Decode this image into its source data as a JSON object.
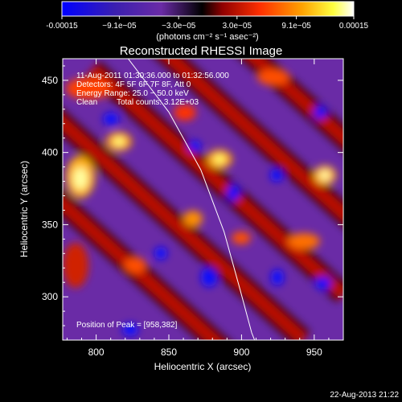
{
  "colors": {
    "background": "#000000",
    "text": "#ffffff",
    "colormap": [
      "#0000ff",
      "#4b2a8c",
      "#6a2ba6",
      "#000000",
      "#a40000",
      "#ff3a00",
      "#ffa000",
      "#ffff60",
      "#ffffff"
    ],
    "limb_line": "#ffffff"
  },
  "colorbar": {
    "tick_labels": [
      "-0.00015",
      "−9.1e−05",
      "−3.0e−05",
      "3.0e−05",
      "9.1e−05",
      "0.00015"
    ],
    "tick_values": [
      -0.00015,
      -9.1e-05,
      -3e-05,
      3e-05,
      9.1e-05,
      0.00015
    ],
    "unit_label": "(photons cm⁻² s⁻¹ asec⁻²)"
  },
  "chart_data": {
    "type": "heatmap",
    "title": "Reconstructed RHESSI Image",
    "xlabel": "Heliocentric X (arcsec)",
    "ylabel": "Heliocentric Y (arcsec)",
    "xlim": [
      777,
      970
    ],
    "ylim": [
      270,
      465
    ],
    "x_ticks": [
      800,
      850,
      900,
      950
    ],
    "y_ticks": [
      300,
      350,
      400,
      450
    ],
    "value_range": [
      -0.00015,
      0.00015
    ],
    "annotations": [
      "11-Aug-2011 01:30:36.000 to 01:32:56.000",
      "Detectors: 4F 5F 6F 7F 8F, Att 0",
      "Energy Range: 25.0 − 50.0 keV",
      "Clean",
      "Total counts: 3.12E+03"
    ],
    "peak_label": "Position of Peak = [958,382]",
    "peak": {
      "x": 958,
      "y": 382
    },
    "limb_curve": [
      {
        "x": 822,
        "y": 465
      },
      {
        "x": 850,
        "y": 428
      },
      {
        "x": 872,
        "y": 388
      },
      {
        "x": 888,
        "y": 345
      },
      {
        "x": 899,
        "y": 305
      },
      {
        "x": 907,
        "y": 275
      },
      {
        "x": 909,
        "y": 270
      }
    ]
  },
  "timestamp": "22-Aug-2013 21:22"
}
